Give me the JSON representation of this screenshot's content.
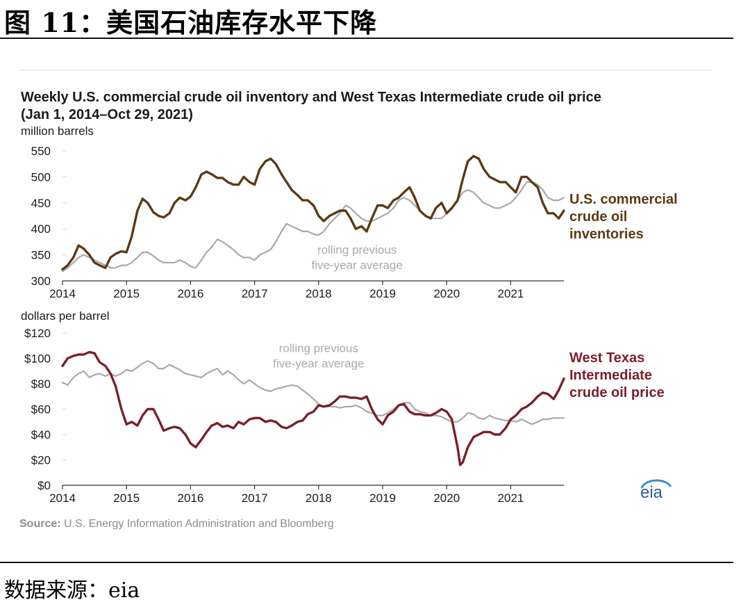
{
  "figure": {
    "title": "图 11：美国石油库存水平下降",
    "source_label": "数据来源：eia"
  },
  "chart_header": {
    "title_line1": "Weekly U.S. commercial crude oil inventory and West Texas Intermediate crude oil price",
    "title_line2": "(Jan 1, 2014–Oct 29, 2021)"
  },
  "source_note": {
    "label": "Source:",
    "text": " U.S. Energy Information Administration and Bloomberg"
  },
  "logo_text": "eia",
  "colors": {
    "inventory": "#5c3a14",
    "wti": "#7b1f2c",
    "average": "#a9a9a9",
    "axis_text": "#1a1a1a",
    "source_text": "#8c8c8c",
    "gridline": "#d9d9d9",
    "logo_blue": "#2f5b9a",
    "logo_arc": "#3a8ed0"
  },
  "chart_data": [
    {
      "type": "line",
      "ylabel": "million barrels",
      "ylim": [
        300,
        550
      ],
      "yticks": [
        300,
        350,
        400,
        450,
        500,
        550
      ],
      "ytick_labels": [
        "300",
        "350",
        "400",
        "450",
        "500",
        "550"
      ],
      "xlim": [
        2014,
        2021.83
      ],
      "xticks": [
        2014,
        2015,
        2016,
        2017,
        2018,
        2019,
        2020,
        2021
      ],
      "xtick_labels": [
        "2014",
        "2015",
        "2016",
        "2017",
        "2018",
        "2019",
        "2020",
        "2021"
      ],
      "series": [
        {
          "name": "U.S. commercial crude oil inventories",
          "label_lines": [
            "U.S. commercial",
            "crude oil",
            "inventories"
          ],
          "color_key": "inventory",
          "x": [
            2014.0,
            2014.08,
            2014.17,
            2014.25,
            2014.33,
            2014.42,
            2014.5,
            2014.58,
            2014.67,
            2014.75,
            2014.83,
            2014.92,
            2015.0,
            2015.08,
            2015.17,
            2015.25,
            2015.33,
            2015.42,
            2015.5,
            2015.58,
            2015.67,
            2015.75,
            2015.83,
            2015.92,
            2016.0,
            2016.08,
            2016.17,
            2016.25,
            2016.33,
            2016.42,
            2016.5,
            2016.58,
            2016.67,
            2016.75,
            2016.83,
            2016.92,
            2017.0,
            2017.08,
            2017.17,
            2017.25,
            2017.33,
            2017.42,
            2017.5,
            2017.58,
            2017.67,
            2017.75,
            2017.83,
            2017.92,
            2018.0,
            2018.08,
            2018.17,
            2018.25,
            2018.33,
            2018.42,
            2018.5,
            2018.58,
            2018.67,
            2018.75,
            2018.83,
            2018.92,
            2019.0,
            2019.08,
            2019.17,
            2019.25,
            2019.33,
            2019.42,
            2019.5,
            2019.58,
            2019.67,
            2019.75,
            2019.83,
            2019.92,
            2020.0,
            2020.08,
            2020.17,
            2020.25,
            2020.33,
            2020.42,
            2020.5,
            2020.58,
            2020.67,
            2020.75,
            2020.83,
            2020.92,
            2021.0,
            2021.08,
            2021.17,
            2021.25,
            2021.33,
            2021.42,
            2021.5,
            2021.58,
            2021.67,
            2021.75,
            2021.83
          ],
          "y": [
            322,
            330,
            345,
            368,
            362,
            350,
            335,
            330,
            325,
            345,
            352,
            357,
            355,
            385,
            435,
            458,
            450,
            432,
            425,
            422,
            430,
            450,
            460,
            455,
            462,
            480,
            505,
            510,
            505,
            498,
            498,
            490,
            485,
            485,
            500,
            490,
            485,
            515,
            530,
            535,
            525,
            505,
            490,
            475,
            465,
            455,
            455,
            445,
            425,
            415,
            425,
            430,
            435,
            435,
            420,
            400,
            405,
            395,
            420,
            445,
            445,
            440,
            455,
            460,
            470,
            480,
            460,
            435,
            425,
            420,
            440,
            450,
            430,
            440,
            455,
            495,
            530,
            540,
            535,
            515,
            500,
            495,
            490,
            490,
            480,
            470,
            500,
            500,
            490,
            480,
            450,
            430,
            430,
            420,
            435
          ]
        },
        {
          "name": "rolling previous five-year average",
          "label_lines": [
            "rolling previous",
            "five-year average"
          ],
          "color_key": "average",
          "x": [
            2014.0,
            2014.08,
            2014.17,
            2014.25,
            2014.33,
            2014.42,
            2014.5,
            2014.58,
            2014.67,
            2014.75,
            2014.83,
            2014.92,
            2015.0,
            2015.08,
            2015.17,
            2015.25,
            2015.33,
            2015.42,
            2015.5,
            2015.58,
            2015.67,
            2015.75,
            2015.83,
            2015.92,
            2016.0,
            2016.08,
            2016.17,
            2016.25,
            2016.33,
            2016.42,
            2016.5,
            2016.58,
            2016.67,
            2016.75,
            2016.83,
            2016.92,
            2017.0,
            2017.08,
            2017.17,
            2017.25,
            2017.33,
            2017.42,
            2017.5,
            2017.58,
            2017.67,
            2017.75,
            2017.83,
            2017.92,
            2018.0,
            2018.08,
            2018.17,
            2018.25,
            2018.33,
            2018.42,
            2018.5,
            2018.58,
            2018.67,
            2018.75,
            2018.83,
            2018.92,
            2019.0,
            2019.08,
            2019.17,
            2019.25,
            2019.33,
            2019.42,
            2019.5,
            2019.58,
            2019.67,
            2019.75,
            2019.83,
            2019.92,
            2020.0,
            2020.08,
            2020.17,
            2020.25,
            2020.33,
            2020.42,
            2020.5,
            2020.58,
            2020.67,
            2020.75,
            2020.83,
            2020.92,
            2021.0,
            2021.08,
            2021.17,
            2021.25,
            2021.33,
            2021.42,
            2021.5,
            2021.58,
            2021.67,
            2021.75,
            2021.83
          ],
          "y": [
            318,
            325,
            335,
            345,
            350,
            345,
            340,
            335,
            330,
            325,
            325,
            330,
            330,
            335,
            345,
            355,
            355,
            348,
            340,
            335,
            335,
            335,
            340,
            335,
            328,
            325,
            340,
            355,
            365,
            380,
            375,
            368,
            360,
            350,
            345,
            345,
            340,
            350,
            355,
            360,
            375,
            395,
            410,
            405,
            400,
            395,
            395,
            390,
            388,
            395,
            410,
            420,
            430,
            445,
            440,
            430,
            420,
            415,
            415,
            420,
            425,
            430,
            440,
            455,
            460,
            455,
            445,
            435,
            425,
            420,
            420,
            420,
            430,
            440,
            455,
            470,
            475,
            470,
            460,
            450,
            445,
            440,
            440,
            445,
            450,
            460,
            475,
            490,
            490,
            485,
            475,
            460,
            455,
            455,
            460
          ]
        }
      ],
      "annotations": [
        {
          "text_lines": [
            "rolling previous",
            "five-year average"
          ],
          "x": 2018.6,
          "y": 352
        }
      ]
    },
    {
      "type": "line",
      "ylabel": "dollars per barrel",
      "ylim": [
        0,
        120
      ],
      "yticks": [
        0,
        20,
        40,
        60,
        80,
        100,
        120
      ],
      "ytick_labels": [
        "$0",
        "$20",
        "$40",
        "$60",
        "$80",
        "$100",
        "$120"
      ],
      "xlim": [
        2014,
        2021.83
      ],
      "xticks": [
        2014,
        2015,
        2016,
        2017,
        2018,
        2019,
        2020,
        2021
      ],
      "xtick_labels": [
        "2014",
        "2015",
        "2016",
        "2017",
        "2018",
        "2019",
        "2020",
        "2021"
      ],
      "series": [
        {
          "name": "West Texas Intermediate crude oil price",
          "label_lines": [
            "West Texas",
            "Intermediate",
            "crude oil price"
          ],
          "color_key": "wti",
          "x": [
            2014.0,
            2014.08,
            2014.17,
            2014.25,
            2014.33,
            2014.42,
            2014.5,
            2014.58,
            2014.67,
            2014.75,
            2014.83,
            2014.92,
            2015.0,
            2015.08,
            2015.17,
            2015.25,
            2015.33,
            2015.42,
            2015.5,
            2015.58,
            2015.67,
            2015.75,
            2015.83,
            2015.92,
            2016.0,
            2016.08,
            2016.17,
            2016.25,
            2016.33,
            2016.42,
            2016.5,
            2016.58,
            2016.67,
            2016.75,
            2016.83,
            2016.92,
            2017.0,
            2017.08,
            2017.17,
            2017.25,
            2017.33,
            2017.42,
            2017.5,
            2017.58,
            2017.67,
            2017.75,
            2017.83,
            2017.92,
            2018.0,
            2018.08,
            2018.17,
            2018.25,
            2018.33,
            2018.42,
            2018.5,
            2018.58,
            2018.67,
            2018.75,
            2018.83,
            2018.92,
            2019.0,
            2019.08,
            2019.17,
            2019.25,
            2019.33,
            2019.42,
            2019.5,
            2019.58,
            2019.67,
            2019.75,
            2019.83,
            2019.92,
            2020.0,
            2020.08,
            2020.17,
            2020.21,
            2020.25,
            2020.33,
            2020.42,
            2020.5,
            2020.58,
            2020.67,
            2020.75,
            2020.83,
            2020.92,
            2021.0,
            2021.08,
            2021.17,
            2021.25,
            2021.33,
            2021.42,
            2021.5,
            2021.58,
            2021.67,
            2021.75,
            2021.83
          ],
          "y": [
            94,
            100,
            102,
            103,
            103,
            105,
            104,
            97,
            94,
            88,
            78,
            60,
            48,
            50,
            47,
            55,
            60,
            60,
            52,
            43,
            45,
            46,
            45,
            40,
            33,
            30,
            36,
            42,
            47,
            49,
            46,
            47,
            45,
            50,
            48,
            52,
            53,
            53,
            50,
            51,
            50,
            46,
            45,
            47,
            50,
            51,
            56,
            58,
            63,
            62,
            63,
            66,
            70,
            70,
            69,
            69,
            68,
            70,
            60,
            52,
            48,
            55,
            58,
            63,
            64,
            58,
            56,
            56,
            55,
            55,
            57,
            60,
            58,
            52,
            30,
            16,
            18,
            30,
            38,
            40,
            42,
            42,
            40,
            40,
            45,
            52,
            55,
            60,
            62,
            65,
            70,
            73,
            72,
            68,
            75,
            84
          ]
        },
        {
          "name": "rolling previous five-year average",
          "label_lines": [
            "rolling previous",
            "five-year average"
          ],
          "color_key": "average",
          "x": [
            2014.0,
            2014.08,
            2014.17,
            2014.25,
            2014.33,
            2014.42,
            2014.5,
            2014.58,
            2014.67,
            2014.75,
            2014.83,
            2014.92,
            2015.0,
            2015.08,
            2015.17,
            2015.25,
            2015.33,
            2015.42,
            2015.5,
            2015.58,
            2015.67,
            2015.75,
            2015.83,
            2015.92,
            2016.0,
            2016.08,
            2016.17,
            2016.25,
            2016.33,
            2016.42,
            2016.5,
            2016.58,
            2016.67,
            2016.75,
            2016.83,
            2016.92,
            2017.0,
            2017.08,
            2017.17,
            2017.25,
            2017.33,
            2017.42,
            2017.5,
            2017.58,
            2017.67,
            2017.75,
            2017.83,
            2017.92,
            2018.0,
            2018.08,
            2018.17,
            2018.25,
            2018.33,
            2018.42,
            2018.5,
            2018.58,
            2018.67,
            2018.75,
            2018.83,
            2018.92,
            2019.0,
            2019.08,
            2019.17,
            2019.25,
            2019.33,
            2019.42,
            2019.5,
            2019.58,
            2019.67,
            2019.75,
            2019.83,
            2019.92,
            2020.0,
            2020.08,
            2020.17,
            2020.25,
            2020.33,
            2020.42,
            2020.5,
            2020.58,
            2020.67,
            2020.75,
            2020.83,
            2020.92,
            2021.0,
            2021.08,
            2021.17,
            2021.25,
            2021.33,
            2021.42,
            2021.5,
            2021.58,
            2021.67,
            2021.75,
            2021.83
          ],
          "y": [
            81,
            79,
            85,
            88,
            90,
            85,
            87,
            88,
            86,
            88,
            86,
            88,
            91,
            90,
            93,
            96,
            98,
            96,
            92,
            92,
            95,
            93,
            91,
            88,
            87,
            86,
            85,
            88,
            90,
            92,
            87,
            90,
            87,
            83,
            80,
            83,
            80,
            77,
            75,
            74,
            76,
            77,
            78,
            79,
            78,
            75,
            72,
            68,
            64,
            62,
            62,
            62,
            61,
            62,
            62,
            63,
            61,
            58,
            57,
            55,
            55,
            57,
            60,
            63,
            65,
            65,
            60,
            58,
            57,
            55,
            55,
            54,
            52,
            50,
            50,
            53,
            57,
            56,
            53,
            52,
            55,
            53,
            52,
            51,
            51,
            50,
            52,
            50,
            48,
            50,
            52,
            52,
            53,
            53,
            53
          ]
        }
      ],
      "annotations": [
        {
          "text_lines": [
            "rolling previous",
            "five-year average"
          ],
          "x": 2018.0,
          "y": 105
        }
      ]
    }
  ]
}
